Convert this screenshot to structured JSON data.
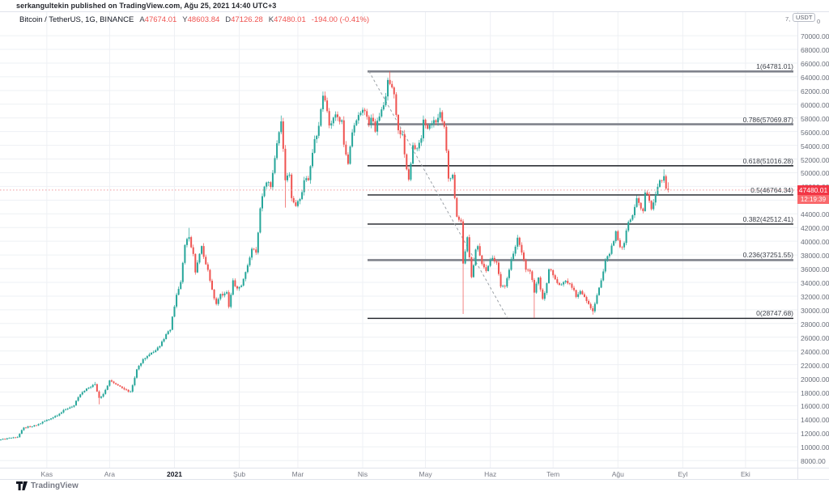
{
  "page": {
    "attribution": "serkangultekin published on TradingView.com, Ağu 25, 2021 14:40 UTC+3",
    "logo_text": "TradingView"
  },
  "legend": {
    "symbol": "Bitcoin / TetherUS, 1G, BINANCE",
    "ohlc": [
      {
        "label": "A",
        "value": "47674.01"
      },
      {
        "label": "Y",
        "value": "48603.84"
      },
      {
        "label": "D",
        "value": "47126.28"
      },
      {
        "label": "K",
        "value": "47480.01"
      }
    ],
    "change": "-194.00 (-0.41%)"
  },
  "price_axis": {
    "unit_chip": "USDT",
    "partial_left": "7,",
    "partial_right": "0",
    "last_price_label": "47480.01",
    "countdown": "12:19:39"
  },
  "chart_data": {
    "type": "candlestick",
    "title": "Bitcoin / TetherUS, 1G, BINANCE",
    "x_unit": "days since 2020-10-10",
    "y_axis": {
      "min": 8000,
      "max": 70000,
      "tick_step": 2000,
      "unit": "USDT",
      "ylim": [
        6950,
        71700
      ]
    },
    "grid": true,
    "time_labels": [
      {
        "text": "Kas",
        "day": 22,
        "year": false
      },
      {
        "text": "Ara",
        "day": 52,
        "year": false
      },
      {
        "text": "2021",
        "day": 83,
        "year": true
      },
      {
        "text": "Şub",
        "day": 114,
        "year": false
      },
      {
        "text": "Mar",
        "day": 142,
        "year": false
      },
      {
        "text": "Nis",
        "day": 173,
        "year": false
      },
      {
        "text": "May",
        "day": 203,
        "year": false
      },
      {
        "text": "Haz",
        "day": 234,
        "year": false
      },
      {
        "text": "Tem",
        "day": 264,
        "year": false
      },
      {
        "text": "Ağu",
        "day": 295,
        "year": false
      },
      {
        "text": "Eyl",
        "day": 326,
        "year": false
      },
      {
        "text": "Eki",
        "day": 356,
        "year": false
      }
    ],
    "anchors": [
      [
        0,
        11056
      ],
      [
        4,
        11296
      ],
      [
        8,
        11428
      ],
      [
        11,
        12820
      ],
      [
        14,
        12931
      ],
      [
        17,
        13130
      ],
      [
        21,
        13780
      ],
      [
        24,
        14150
      ],
      [
        28,
        14830
      ],
      [
        31,
        15480
      ],
      [
        35,
        16069
      ],
      [
        38,
        17650
      ],
      [
        42,
        18655
      ],
      [
        45,
        19150
      ],
      [
        47,
        17150
      ],
      [
        49,
        17720
      ],
      [
        52,
        19695
      ],
      [
        55,
        19154
      ],
      [
        57,
        18800
      ],
      [
        60,
        18320
      ],
      [
        62,
        18060
      ],
      [
        65,
        21310
      ],
      [
        68,
        22800
      ],
      [
        70,
        23240
      ],
      [
        72,
        23730
      ],
      [
        76,
        24710
      ],
      [
        79,
        26440
      ],
      [
        81,
        27080
      ],
      [
        82,
        29000
      ],
      [
        84,
        32190
      ],
      [
        86,
        34050
      ],
      [
        87,
        36850
      ],
      [
        88,
        39450
      ],
      [
        90,
        40600
      ],
      [
        92,
        38150
      ],
      [
        93,
        35450
      ],
      [
        96,
        39300
      ],
      [
        98,
        36630
      ],
      [
        99,
        35830
      ],
      [
        101,
        32950
      ],
      [
        103,
        30850
      ],
      [
        105,
        32300
      ],
      [
        106,
        32100
      ],
      [
        108,
        32570
      ],
      [
        109,
        30430
      ],
      [
        111,
        34300
      ],
      [
        113,
        33110
      ],
      [
        115,
        33540
      ],
      [
        117,
        35510
      ],
      [
        119,
        37620
      ],
      [
        120,
        38900
      ],
      [
        122,
        38340
      ],
      [
        124,
        44800
      ],
      [
        126,
        47970
      ],
      [
        127,
        48580
      ],
      [
        129,
        47910
      ],
      [
        131,
        52140
      ],
      [
        133,
        55920
      ],
      [
        134,
        57490
      ],
      [
        136,
        48900
      ],
      [
        138,
        49720
      ],
      [
        139,
        46300
      ],
      [
        141,
        45140
      ],
      [
        143,
        46150
      ],
      [
        145,
        48900
      ],
      [
        147,
        48920
      ],
      [
        148,
        50950
      ],
      [
        150,
        54900
      ],
      [
        152,
        56850
      ],
      [
        154,
        61240
      ],
      [
        156,
        59000
      ],
      [
        157,
        56900
      ],
      [
        159,
        58050
      ],
      [
        161,
        58120
      ],
      [
        163,
        57650
      ],
      [
        164,
        54100
      ],
      [
        166,
        51300
      ],
      [
        168,
        55880
      ],
      [
        170,
        57640
      ],
      [
        172,
        58750
      ],
      [
        174,
        58990
      ],
      [
        176,
        57080
      ],
      [
        177,
        58020
      ],
      [
        179,
        56000
      ],
      [
        181,
        58210
      ],
      [
        183,
        59850
      ],
      [
        185,
        63540
      ],
      [
        186,
        62950
      ],
      [
        188,
        61450
      ],
      [
        190,
        56200
      ],
      [
        192,
        55650
      ],
      [
        194,
        50500
      ],
      [
        195,
        49000
      ],
      [
        197,
        54020
      ],
      [
        199,
        53550
      ],
      [
        201,
        55030
      ],
      [
        202,
        57750
      ],
      [
        204,
        56420
      ],
      [
        206,
        57200
      ],
      [
        208,
        57350
      ],
      [
        210,
        58850
      ],
      [
        212,
        56700
      ],
      [
        214,
        49150
      ],
      [
        216,
        49700
      ],
      [
        218,
        43580
      ],
      [
        220,
        42900
      ],
      [
        221,
        36750
      ],
      [
        223,
        40590
      ],
      [
        225,
        34770
      ],
      [
        227,
        38790
      ],
      [
        228,
        39290
      ],
      [
        230,
        36690
      ],
      [
        232,
        35660
      ],
      [
        234,
        37300
      ],
      [
        235,
        37570
      ],
      [
        237,
        36890
      ],
      [
        239,
        33390
      ],
      [
        241,
        33400
      ],
      [
        243,
        35840
      ],
      [
        244,
        37390
      ],
      [
        246,
        39210
      ],
      [
        247,
        40520
      ],
      [
        249,
        38350
      ],
      [
        251,
        35850
      ],
      [
        253,
        35600
      ],
      [
        255,
        32510
      ],
      [
        257,
        34700
      ],
      [
        259,
        31600
      ],
      [
        260,
        32460
      ],
      [
        262,
        35900
      ],
      [
        264,
        35040
      ],
      [
        266,
        33900
      ],
      [
        268,
        33700
      ],
      [
        270,
        34230
      ],
      [
        272,
        33800
      ],
      [
        274,
        32880
      ],
      [
        275,
        31880
      ],
      [
        277,
        32730
      ],
      [
        279,
        31870
      ],
      [
        281,
        30840
      ],
      [
        283,
        29790
      ],
      [
        285,
        32140
      ],
      [
        287,
        34290
      ],
      [
        289,
        37240
      ],
      [
        291,
        38160
      ],
      [
        293,
        40020
      ],
      [
        294,
        41460
      ],
      [
        296,
        39150
      ],
      [
        298,
        39750
      ],
      [
        300,
        42820
      ],
      [
        302,
        43800
      ],
      [
        304,
        46280
      ],
      [
        305,
        45600
      ],
      [
        307,
        44400
      ],
      [
        308,
        47100
      ],
      [
        310,
        45900
      ],
      [
        311,
        44690
      ],
      [
        313,
        46760
      ],
      [
        315,
        48900
      ],
      [
        317,
        49500
      ],
      [
        318,
        47690
      ],
      [
        319,
        47480.01
      ]
    ],
    "wick_overrides": {
      "45": {
        "high": 19484
      },
      "47": {
        "low": 16200
      },
      "90": {
        "high": 41950
      },
      "134": {
        "high": 58352
      },
      "136": {
        "low": 44900
      },
      "154": {
        "high": 61844
      },
      "186": {
        "high": 64781.01
      },
      "221": {
        "low": 29400
      },
      "255": {
        "low": 28805
      },
      "283": {
        "low": 29296
      },
      "317": {
        "high": 50500
      }
    },
    "last_candle": {
      "open": 47674.01,
      "high": 48603.84,
      "low": 47126.28,
      "close": 47480.01
    },
    "last_price": 47480.01,
    "fib_levels": [
      {
        "ratio": "1",
        "value": 64781.01,
        "label": "1(64781.01)",
        "style": "thick"
      },
      {
        "ratio": "0.786",
        "value": 57069.87,
        "label": "0.786(57069.87)",
        "style": "thick"
      },
      {
        "ratio": "0.618",
        "value": 51016.28,
        "label": "0.618(51016.28)",
        "style": "thin"
      },
      {
        "ratio": "0.5",
        "value": 46764.34,
        "label": "0.5(46764.34)",
        "style": "thin"
      },
      {
        "ratio": "0.382",
        "value": 42512.41,
        "label": "0.382(42512.41)",
        "style": "thin"
      },
      {
        "ratio": "0.236",
        "value": 37251.55,
        "label": "0.236(37251.55)",
        "style": "thick"
      },
      {
        "ratio": "0",
        "value": 28747.68,
        "label": "0(28747.68)",
        "style": "thin"
      }
    ],
    "trendline": {
      "from_day": 176,
      "from_price": 64800,
      "to_day": 242,
      "to_price": 28900,
      "style": "dashed"
    },
    "colors": {
      "up": "#26a69a",
      "down": "#ef5350",
      "fib_thick": "#80838c",
      "fib_thin": "#1b1e24",
      "trend": "#9aa0a6",
      "grid": "#eef0f4",
      "last_price_line": "#f0999e",
      "price_box": "#f23645",
      "countdown_box": "#f9696c"
    }
  }
}
